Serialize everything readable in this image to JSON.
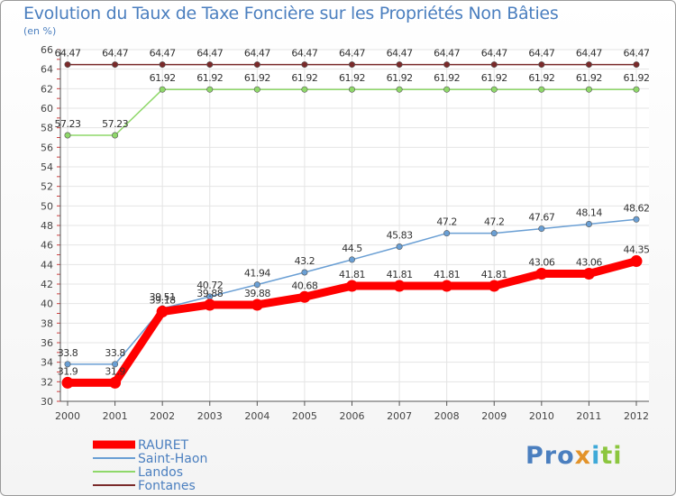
{
  "title": "Evolution du Taux de Taxe Foncière sur les Propriétés Non Bâties",
  "unit_label": "(en %)",
  "logo": {
    "text_a": "Pro",
    "text_b": "x",
    "text_c": "i",
    "text_d": "ti"
  },
  "chart_data": {
    "type": "line",
    "title": "Evolution du Taux de Taxe Foncière sur les Propriétés Non Bâties",
    "ylabel": "(en %)",
    "xlabel": "",
    "ylim": [
      30,
      66
    ],
    "yticks": [
      30,
      32,
      34,
      36,
      38,
      40,
      42,
      44,
      46,
      48,
      50,
      52,
      54,
      56,
      58,
      60,
      62,
      64,
      66
    ],
    "categories": [
      "2000",
      "2001",
      "2002",
      "2003",
      "2004",
      "2005",
      "2006",
      "2007",
      "2008",
      "2009",
      "2010",
      "2011",
      "2012"
    ],
    "grid": true,
    "legend_position": "bottom-left",
    "series": [
      {
        "name": "RAURET",
        "color": "#ff0000",
        "values": [
          31.9,
          31.9,
          39.18,
          39.88,
          39.88,
          40.68,
          41.81,
          41.81,
          41.81,
          41.81,
          43.06,
          43.06,
          44.35
        ],
        "labels": [
          "31.9",
          "31.9",
          "39.18",
          "39.88",
          "39.88",
          "40.68",
          "41.81",
          "41.81",
          "41.81",
          "41.81",
          "43.06",
          "43.06",
          "44.35"
        ]
      },
      {
        "name": "Saint-Haon",
        "color": "#6a9fd4",
        "values": [
          33.8,
          33.8,
          39.51,
          40.72,
          41.94,
          43.2,
          44.5,
          45.83,
          47.2,
          47.2,
          47.67,
          48.14,
          48.62
        ],
        "labels": [
          "33.8",
          "33.8",
          "39.51",
          "40.72",
          "41.94",
          "43.2",
          "44.5",
          "45.83",
          "47.2",
          "47.2",
          "47.67",
          "48.14",
          "48.62"
        ]
      },
      {
        "name": "Landos",
        "color": "#8fd86a",
        "values": [
          57.23,
          57.23,
          61.92,
          61.92,
          61.92,
          61.92,
          61.92,
          61.92,
          61.92,
          61.92,
          61.92,
          61.92,
          61.92
        ],
        "labels": [
          "57.23",
          "57.23",
          "61.92",
          "61.92",
          "61.92",
          "61.92",
          "61.92",
          "61.92",
          "61.92",
          "61.92",
          "61.92",
          "61.92",
          "61.92"
        ]
      },
      {
        "name": "Fontanes",
        "color": "#7a2a2a",
        "values": [
          64.47,
          64.47,
          64.47,
          64.47,
          64.47,
          64.47,
          64.47,
          64.47,
          64.47,
          64.47,
          64.47,
          64.47,
          64.47
        ],
        "labels": [
          "64.47",
          "64.47",
          "64.47",
          "64.47",
          "64.47",
          "64.47",
          "64.47",
          "64.47",
          "64.47",
          "64.47",
          "64.47",
          "64.47",
          "64.47"
        ]
      }
    ]
  }
}
